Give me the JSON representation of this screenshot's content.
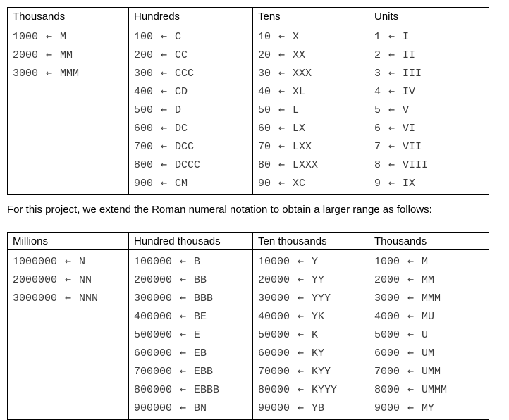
{
  "arrow_glyph": "←",
  "intro_text": "For this project, we extend the Roman numeral notation to obtain a larger range as follows:",
  "tables": [
    {
      "title": "standard roman numerals",
      "columns": [
        {
          "header": "Thousands",
          "entries": [
            {
              "value": "1000",
              "numeral": "M"
            },
            {
              "value": "2000",
              "numeral": "MM"
            },
            {
              "value": "3000",
              "numeral": "MMM"
            }
          ]
        },
        {
          "header": "Hundreds",
          "entries": [
            {
              "value": "100",
              "numeral": "C"
            },
            {
              "value": "200",
              "numeral": "CC"
            },
            {
              "value": "300",
              "numeral": "CCC"
            },
            {
              "value": "400",
              "numeral": "CD"
            },
            {
              "value": "500",
              "numeral": "D"
            },
            {
              "value": "600",
              "numeral": "DC"
            },
            {
              "value": "700",
              "numeral": "DCC"
            },
            {
              "value": "800",
              "numeral": "DCCC"
            },
            {
              "value": "900",
              "numeral": "CM"
            }
          ]
        },
        {
          "header": "Tens",
          "entries": [
            {
              "value": "10",
              "numeral": "X"
            },
            {
              "value": "20",
              "numeral": "XX"
            },
            {
              "value": "30",
              "numeral": "XXX"
            },
            {
              "value": "40",
              "numeral": "XL"
            },
            {
              "value": "50",
              "numeral": "L"
            },
            {
              "value": "60",
              "numeral": "LX"
            },
            {
              "value": "70",
              "numeral": "LXX"
            },
            {
              "value": "80",
              "numeral": "LXXX"
            },
            {
              "value": "90",
              "numeral": "XC"
            }
          ]
        },
        {
          "header": "Units",
          "entries": [
            {
              "value": "1",
              "numeral": "I"
            },
            {
              "value": "2",
              "numeral": "II"
            },
            {
              "value": "3",
              "numeral": "III"
            },
            {
              "value": "4",
              "numeral": "IV"
            },
            {
              "value": "5",
              "numeral": "V"
            },
            {
              "value": "6",
              "numeral": "VI"
            },
            {
              "value": "7",
              "numeral": "VII"
            },
            {
              "value": "8",
              "numeral": "VIII"
            },
            {
              "value": "9",
              "numeral": "IX"
            }
          ]
        }
      ]
    },
    {
      "title": "extended roman numerals",
      "columns": [
        {
          "header": "Millions",
          "entries": [
            {
              "value": "1000000",
              "numeral": "N"
            },
            {
              "value": "2000000",
              "numeral": "NN"
            },
            {
              "value": "3000000",
              "numeral": "NNN"
            }
          ]
        },
        {
          "header": "Hundred thousads",
          "entries": [
            {
              "value": "100000",
              "numeral": "B"
            },
            {
              "value": "200000",
              "numeral": "BB"
            },
            {
              "value": "300000",
              "numeral": "BBB"
            },
            {
              "value": "400000",
              "numeral": "BE"
            },
            {
              "value": "500000",
              "numeral": "E"
            },
            {
              "value": "600000",
              "numeral": "EB"
            },
            {
              "value": "700000",
              "numeral": "EBB"
            },
            {
              "value": "800000",
              "numeral": "EBBB"
            },
            {
              "value": "900000",
              "numeral": "BN"
            }
          ]
        },
        {
          "header": "Ten thousands",
          "entries": [
            {
              "value": "10000",
              "numeral": "Y"
            },
            {
              "value": "20000",
              "numeral": "YY"
            },
            {
              "value": "30000",
              "numeral": "YYY"
            },
            {
              "value": "40000",
              "numeral": "YK"
            },
            {
              "value": "50000",
              "numeral": "K"
            },
            {
              "value": "60000",
              "numeral": "KY"
            },
            {
              "value": "70000",
              "numeral": "KYY"
            },
            {
              "value": "80000",
              "numeral": "KYYY"
            },
            {
              "value": "90000",
              "numeral": "YB"
            }
          ]
        },
        {
          "header": "Thousands",
          "entries": [
            {
              "value": "1000",
              "numeral": "M"
            },
            {
              "value": "2000",
              "numeral": "MM"
            },
            {
              "value": "3000",
              "numeral": "MMM"
            },
            {
              "value": "4000",
              "numeral": "MU"
            },
            {
              "value": "5000",
              "numeral": "U"
            },
            {
              "value": "6000",
              "numeral": "UM"
            },
            {
              "value": "7000",
              "numeral": "UMM"
            },
            {
              "value": "8000",
              "numeral": "UMMM"
            },
            {
              "value": "9000",
              "numeral": "MY"
            }
          ]
        }
      ]
    }
  ]
}
